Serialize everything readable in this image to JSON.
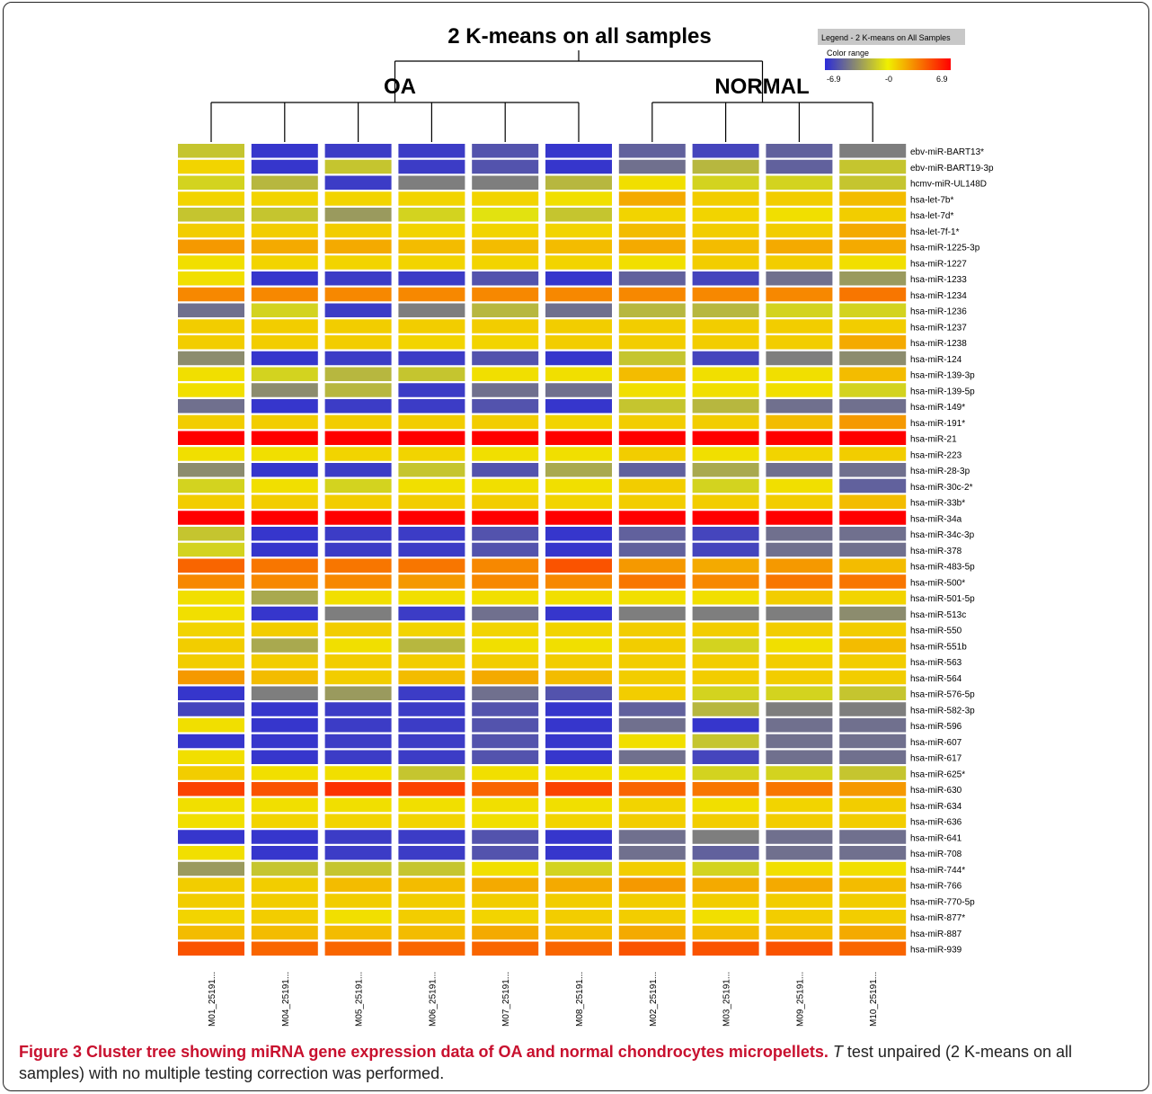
{
  "caption": {
    "figure_label": "Figure 3",
    "bold_text": "Cluster tree showing miRNA gene expression data of OA and normal chondrocytes micropellets.",
    "italic_letter": "T",
    "rest_text": "test unpaired (2 K-means on all samples) with no multiple testing correction was performed."
  },
  "legend": {
    "title": "Legend - 2 K-means on All Samples",
    "subtitle": "Color range",
    "ticks": [
      "-6.9",
      "-0",
      "6.9"
    ],
    "colors": [
      "#2b2bd9",
      "#f0f000",
      "#ff0000"
    ]
  },
  "chart_data": {
    "type": "heatmap",
    "title": "2 K-means on all samples",
    "groups": [
      {
        "label": "OA",
        "columns": [
          "M01_25191...",
          "M04_25191...",
          "M05_25191...",
          "M06_25191...",
          "M07_25191...",
          "M08_25191..."
        ]
      },
      {
        "label": "NORMAL",
        "columns": [
          "M02_25191...",
          "M03_25191...",
          "M09_25191...",
          "M10_25191..."
        ]
      }
    ],
    "columns": [
      "M01_25191...",
      "M04_25191...",
      "M05_25191...",
      "M06_25191...",
      "M07_25191...",
      "M08_25191...",
      "M02_25191...",
      "M03_25191...",
      "M09_25191...",
      "M10_25191..."
    ],
    "rows": [
      "ebv-miR-BART13*",
      "ebv-miR-BART19-3p",
      "hcmv-miR-UL148D",
      "hsa-let-7b*",
      "hsa-let-7d*",
      "hsa-let-7f-1*",
      "hsa-miR-1225-3p",
      "hsa-miR-1227",
      "hsa-miR-1233",
      "hsa-miR-1234",
      "hsa-miR-1236",
      "hsa-miR-1237",
      "hsa-miR-1238",
      "hsa-miR-124",
      "hsa-miR-139-3p",
      "hsa-miR-139-5p",
      "hsa-miR-149*",
      "hsa-miR-191*",
      "hsa-miR-21",
      "hsa-miR-223",
      "hsa-miR-28-3p",
      "hsa-miR-30c-2*",
      "hsa-miR-33b*",
      "hsa-miR-34a",
      "hsa-miR-34c-3p",
      "hsa-miR-378",
      "hsa-miR-483-5p",
      "hsa-miR-500*",
      "hsa-miR-501-5p",
      "hsa-miR-513c",
      "hsa-miR-550",
      "hsa-miR-551b",
      "hsa-miR-563",
      "hsa-miR-564",
      "hsa-miR-576-5p",
      "hsa-miR-582-3p",
      "hsa-miR-596",
      "hsa-miR-607",
      "hsa-miR-617",
      "hsa-miR-625*",
      "hsa-miR-630",
      "hsa-miR-634",
      "hsa-miR-636",
      "hsa-miR-641",
      "hsa-miR-708",
      "hsa-miR-744*",
      "hsa-miR-766",
      "hsa-miR-770-5p",
      "hsa-miR-877*",
      "hsa-miR-887",
      "hsa-miR-939"
    ],
    "value_range": [
      -6.9,
      6.9
    ],
    "values": [
      [
        -1.5,
        -6.5,
        -6.3,
        -6.3,
        -5.5,
        -6.5,
        -5.0,
        -6.0,
        -5.0,
        -4.0
      ],
      [
        0.8,
        -6.5,
        -1.5,
        -6.3,
        -5.5,
        -6.5,
        -4.5,
        -2.0,
        -5.0,
        -1.5
      ],
      [
        -1.0,
        -2.0,
        -6.3,
        -4.0,
        -4.0,
        -2.0,
        0.5,
        -1.0,
        -1.0,
        -1.5
      ],
      [
        0.8,
        0.8,
        0.8,
        0.8,
        0.8,
        0.5,
        2.0,
        1.0,
        1.0,
        1.5
      ],
      [
        -1.5,
        -1.5,
        -3.0,
        -1.0,
        -0.5,
        -1.5,
        0.8,
        0.8,
        0.5,
        1.0
      ],
      [
        1.0,
        1.0,
        1.0,
        0.8,
        0.8,
        0.8,
        1.5,
        1.0,
        1.0,
        2.0
      ],
      [
        2.5,
        2.0,
        2.0,
        1.5,
        1.5,
        1.5,
        2.0,
        1.5,
        2.0,
        2.0
      ],
      [
        0.5,
        0.8,
        0.8,
        0.8,
        0.8,
        0.8,
        0.5,
        1.0,
        1.0,
        0.5
      ],
      [
        0.5,
        -6.5,
        -6.3,
        -6.3,
        -5.5,
        -6.5,
        -5.0,
        -6.0,
        -4.5,
        -3.0
      ],
      [
        3.0,
        3.0,
        3.0,
        3.0,
        3.0,
        3.0,
        3.0,
        3.0,
        3.0,
        3.5
      ],
      [
        -4.5,
        -1.0,
        -6.3,
        -4.0,
        -2.0,
        -4.5,
        -2.0,
        -2.0,
        -1.0,
        -1.0
      ],
      [
        1.0,
        1.0,
        1.0,
        1.0,
        1.0,
        1.0,
        1.0,
        1.0,
        1.0,
        1.0
      ],
      [
        1.0,
        1.0,
        1.0,
        0.8,
        0.8,
        1.0,
        1.0,
        1.0,
        1.0,
        2.0
      ],
      [
        -3.5,
        -6.5,
        -6.3,
        -6.3,
        -5.5,
        -6.5,
        -1.5,
        -6.0,
        -4.0,
        -3.5
      ],
      [
        0.5,
        -1.0,
        -2.0,
        -1.5,
        0.5,
        0.5,
        1.5,
        0.5,
        0.5,
        1.5
      ],
      [
        0.5,
        -3.5,
        -2.0,
        -6.3,
        -4.5,
        -4.5,
        0.5,
        0.5,
        0.5,
        -1.0
      ],
      [
        -4.5,
        -6.5,
        -6.3,
        -6.3,
        -5.5,
        -6.5,
        -1.5,
        -2.0,
        -4.5,
        -4.5
      ],
      [
        1.0,
        1.0,
        1.0,
        1.0,
        1.0,
        0.8,
        1.0,
        1.0,
        1.5,
        2.5
      ],
      [
        6.9,
        6.9,
        6.9,
        6.9,
        6.9,
        6.9,
        6.9,
        6.9,
        6.9,
        6.9
      ],
      [
        0.5,
        0.5,
        0.8,
        0.8,
        0.5,
        0.5,
        1.0,
        0.5,
        0.8,
        1.0
      ],
      [
        -3.5,
        -6.5,
        -6.3,
        -1.5,
        -5.5,
        -2.5,
        -5.0,
        -2.5,
        -4.5,
        -4.5
      ],
      [
        -1.0,
        0.5,
        -1.0,
        0.5,
        0.5,
        0.5,
        1.0,
        -1.0,
        0.5,
        -5.0
      ],
      [
        1.0,
        1.0,
        1.0,
        1.0,
        1.0,
        0.8,
        1.0,
        1.0,
        1.0,
        1.5
      ],
      [
        6.9,
        6.9,
        6.9,
        6.9,
        6.9,
        6.9,
        6.9,
        6.9,
        6.9,
        6.9
      ],
      [
        -1.5,
        -6.5,
        -6.3,
        -6.3,
        -5.5,
        -6.5,
        -5.0,
        -6.0,
        -4.5,
        -4.5
      ],
      [
        -1.0,
        -6.5,
        -6.3,
        -6.3,
        -5.5,
        -6.5,
        -5.0,
        -6.0,
        -4.5,
        -4.5
      ],
      [
        4.0,
        3.5,
        3.5,
        3.5,
        3.0,
        4.5,
        2.5,
        2.0,
        2.5,
        1.5
      ],
      [
        3.0,
        3.0,
        3.0,
        2.5,
        3.0,
        3.0,
        3.5,
        3.0,
        3.5,
        3.5
      ],
      [
        0.5,
        -2.5,
        0.5,
        0.5,
        0.5,
        0.5,
        0.5,
        0.5,
        1.0,
        0.8
      ],
      [
        0.5,
        -6.5,
        -4.0,
        -6.3,
        -4.5,
        -6.5,
        -4.0,
        -4.0,
        -4.0,
        -3.5
      ],
      [
        0.8,
        1.0,
        1.0,
        0.8,
        0.8,
        0.8,
        1.0,
        1.0,
        1.0,
        1.0
      ],
      [
        1.0,
        -2.5,
        0.5,
        -2.0,
        0.5,
        0.5,
        1.0,
        -1.0,
        0.5,
        1.5
      ],
      [
        1.0,
        1.0,
        1.0,
        1.0,
        1.0,
        1.0,
        1.0,
        1.0,
        1.0,
        1.0
      ],
      [
        2.5,
        1.5,
        1.0,
        1.5,
        2.0,
        1.5,
        1.0,
        1.0,
        1.0,
        1.0
      ],
      [
        -6.5,
        -4.0,
        -3.0,
        -6.3,
        -4.5,
        -5.5,
        1.0,
        -1.0,
        -1.0,
        -1.5
      ],
      [
        -6.0,
        -6.5,
        -6.3,
        -6.3,
        -5.5,
        -6.5,
        -5.0,
        -2.0,
        -4.0,
        -4.0
      ],
      [
        0.5,
        -6.5,
        -6.3,
        -6.3,
        -5.5,
        -6.5,
        -4.5,
        -6.5,
        -4.5,
        -4.5
      ],
      [
        -6.5,
        -6.5,
        -6.3,
        -6.3,
        -5.5,
        -6.5,
        0.5,
        -1.5,
        -4.5,
        -4.5
      ],
      [
        0.5,
        -6.5,
        -6.3,
        -6.3,
        -5.5,
        -6.5,
        -4.5,
        -6.0,
        -4.5,
        -4.5
      ],
      [
        1.0,
        0.5,
        0.5,
        -1.5,
        0.5,
        0.5,
        0.5,
        -1.0,
        -1.0,
        -1.5
      ],
      [
        5.0,
        4.5,
        5.5,
        5.0,
        4.0,
        5.0,
        4.0,
        3.5,
        3.5,
        2.5
      ],
      [
        0.5,
        0.5,
        0.5,
        0.5,
        0.5,
        0.5,
        0.8,
        0.5,
        0.8,
        1.0
      ],
      [
        0.5,
        0.8,
        0.8,
        0.8,
        0.5,
        0.8,
        1.0,
        1.0,
        1.0,
        1.0
      ],
      [
        -6.5,
        -6.5,
        -6.3,
        -6.3,
        -5.5,
        -6.5,
        -4.5,
        -4.0,
        -4.5,
        -4.5
      ],
      [
        0.5,
        -6.5,
        -6.3,
        -6.3,
        -5.5,
        -6.5,
        -4.5,
        -5.0,
        -4.5,
        -4.5
      ],
      [
        -3.0,
        -1.5,
        -1.5,
        -1.5,
        0.5,
        -1.0,
        1.0,
        -1.0,
        0.5,
        0.5
      ],
      [
        1.0,
        1.0,
        1.5,
        1.5,
        2.0,
        2.0,
        2.5,
        2.0,
        2.0,
        1.5
      ],
      [
        1.0,
        1.0,
        1.0,
        1.0,
        1.0,
        1.0,
        1.0,
        1.0,
        1.0,
        1.0
      ],
      [
        0.8,
        1.0,
        0.5,
        1.0,
        0.8,
        1.0,
        1.0,
        0.5,
        1.0,
        1.0
      ],
      [
        1.5,
        1.5,
        1.5,
        1.5,
        2.0,
        1.5,
        2.0,
        1.5,
        1.5,
        2.0
      ],
      [
        4.5,
        4.0,
        4.0,
        4.0,
        4.0,
        4.0,
        4.5,
        4.5,
        4.5,
        4.0
      ]
    ]
  }
}
